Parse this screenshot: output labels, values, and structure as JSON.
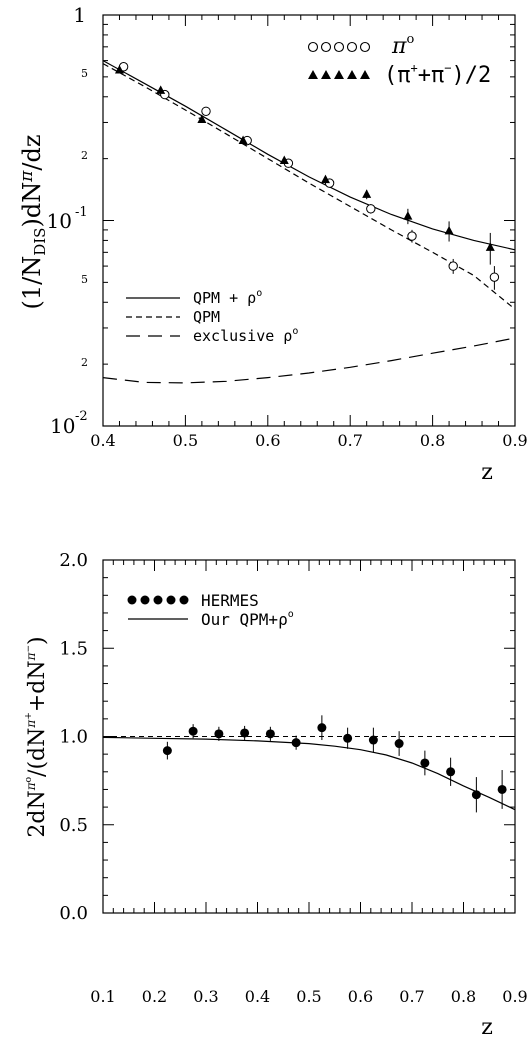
{
  "chart_data": [
    {
      "type": "scatter",
      "xlabel": "z",
      "ylabel": "(1/N_DIS)dN^π/dz",
      "yscale": "log",
      "xlim": [
        0.4,
        0.9
      ],
      "ylim": [
        0.01,
        1
      ],
      "grid": false,
      "legend_position": "top-right",
      "xticks": [
        "0.4",
        "0.5",
        "0.6",
        "0.7",
        "0.8",
        "0.9"
      ],
      "ytick_labels": {
        "top": "1",
        "middle_mantissa": "10",
        "middle_exponent": "-1",
        "bottom_mantissa": "10",
        "bottom_exponent": "-2"
      },
      "minor_tick_labels": {
        "upper_5": "5",
        "upper_2": "2",
        "lower_5": "5",
        "lower_2": "2"
      },
      "legend_top": [
        {
          "symbols": "○○○○○",
          "label_base": "π",
          "label_sup": "o"
        },
        {
          "symbols": "▲▲▲▲▲",
          "label_prefix": "(π",
          "label_sup1": "+",
          "label_mid": "+π",
          "label_sup2": "−",
          "label_suffix": ")/2"
        }
      ],
      "legend_bottom": [
        {
          "label_base": "QPM + ρ",
          "label_sup": "o"
        },
        {
          "label_base": "QPM"
        },
        {
          "label_base": "exclusive ρ",
          "label_sup": "o"
        }
      ],
      "series": [
        {
          "marker": "open-circle",
          "x": [
            0.425,
            0.475,
            0.525,
            0.575,
            0.625,
            0.675,
            0.725,
            0.775,
            0.825,
            0.875
          ],
          "y": [
            0.56,
            0.41,
            0.34,
            0.245,
            0.19,
            0.152,
            0.114,
            0.084,
            0.06,
            0.053
          ],
          "yerr": [
            0.01,
            0.01,
            0.008,
            0.007,
            0.006,
            0.005,
            0.006,
            0.006,
            0.005,
            0.007
          ]
        },
        {
          "marker": "filled-triangle",
          "x": [
            0.42,
            0.47,
            0.52,
            0.57,
            0.62,
            0.67,
            0.72,
            0.77,
            0.82,
            0.87
          ],
          "y": [
            0.54,
            0.43,
            0.31,
            0.245,
            0.196,
            0.158,
            0.134,
            0.105,
            0.089,
            0.074
          ],
          "yerr": [
            0.01,
            0.01,
            0.008,
            0.006,
            0.006,
            0.006,
            0.007,
            0.009,
            0.01,
            0.013
          ]
        },
        {
          "line": "solid",
          "x": [
            0.4,
            0.45,
            0.5,
            0.55,
            0.6,
            0.65,
            0.7,
            0.75,
            0.8,
            0.85,
            0.9
          ],
          "y": [
            0.6,
            0.465,
            0.36,
            0.275,
            0.21,
            0.163,
            0.13,
            0.107,
            0.091,
            0.08,
            0.072
          ]
        },
        {
          "line": "dashed",
          "x": [
            0.4,
            0.45,
            0.5,
            0.55,
            0.6,
            0.65,
            0.7,
            0.75,
            0.8,
            0.85,
            0.9
          ],
          "y": [
            0.58,
            0.45,
            0.345,
            0.263,
            0.2,
            0.152,
            0.117,
            0.09,
            0.07,
            0.054,
            0.037
          ]
        },
        {
          "line": "long-dash",
          "x": [
            0.4,
            0.45,
            0.5,
            0.55,
            0.6,
            0.65,
            0.7,
            0.75,
            0.8,
            0.85,
            0.9
          ],
          "y": [
            0.0172,
            0.0163,
            0.0162,
            0.0165,
            0.0172,
            0.0181,
            0.0193,
            0.0208,
            0.0226,
            0.0245,
            0.0268
          ]
        }
      ]
    },
    {
      "type": "scatter",
      "xlabel": "z",
      "ylabel": "2dN^π°/(dN^π⁺+dN^π⁻)",
      "xlim": [
        0.1,
        0.9
      ],
      "ylim": [
        0.0,
        2.0
      ],
      "grid": false,
      "legend_position": "top-left",
      "xticks": [
        "0.1",
        "0.2",
        "0.3",
        "0.4",
        "0.5",
        "0.6",
        "0.7",
        "0.8",
        "0.9"
      ],
      "yticks": [
        "0.0",
        "0.5",
        "1.0",
        "1.5",
        "2.0"
      ],
      "legend": [
        {
          "symbols": "●●●●●",
          "label": "HERMES"
        },
        {
          "label_base": "Our QPM+ρ",
          "label_sup": "o"
        }
      ],
      "reference_line": {
        "y": 1.0,
        "style": "dashed"
      },
      "series": [
        {
          "marker": "filled-circle",
          "x": [
            0.225,
            0.275,
            0.325,
            0.375,
            0.425,
            0.475,
            0.525,
            0.575,
            0.625,
            0.675,
            0.725,
            0.775,
            0.825,
            0.875
          ],
          "y": [
            0.92,
            1.03,
            1.015,
            1.02,
            1.015,
            0.965,
            1.05,
            0.99,
            0.98,
            0.96,
            0.85,
            0.8,
            0.67,
            0.7
          ],
          "yerr": [
            0.05,
            0.04,
            0.04,
            0.04,
            0.04,
            0.04,
            0.07,
            0.06,
            0.07,
            0.07,
            0.07,
            0.08,
            0.1,
            0.11
          ]
        },
        {
          "line": "solid",
          "x": [
            0.1,
            0.2,
            0.3,
            0.4,
            0.5,
            0.55,
            0.6,
            0.65,
            0.7,
            0.75,
            0.8,
            0.85,
            0.9
          ],
          "y": [
            0.995,
            0.99,
            0.985,
            0.975,
            0.96,
            0.945,
            0.925,
            0.895,
            0.85,
            0.79,
            0.72,
            0.655,
            0.585
          ]
        }
      ]
    }
  ]
}
